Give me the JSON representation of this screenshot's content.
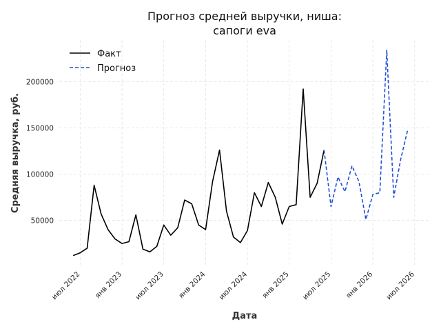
{
  "chart_data": {
    "type": "line",
    "title_lines": [
      "Прогноз средней выручки, ниша:",
      "сапоги eva"
    ],
    "xlabel": "Дата",
    "ylabel": "Средняя выручка, руб.",
    "x_ticks": [
      {
        "date": "2022-07",
        "label": "июл 2022"
      },
      {
        "date": "2023-01",
        "label": "янв 2023"
      },
      {
        "date": "2023-07",
        "label": "июл 2023"
      },
      {
        "date": "2024-01",
        "label": "янв 2024"
      },
      {
        "date": "2024-07",
        "label": "июл 2024"
      },
      {
        "date": "2025-01",
        "label": "янв 2025"
      },
      {
        "date": "2025-07",
        "label": "июл 2025"
      },
      {
        "date": "2026-01",
        "label": "янв 2026"
      },
      {
        "date": "2026-07",
        "label": "июл 2026"
      }
    ],
    "y_ticks": [
      {
        "value": 50000,
        "label": "50000"
      },
      {
        "value": 100000,
        "label": "100000"
      },
      {
        "value": 150000,
        "label": "150000"
      },
      {
        "value": 200000,
        "label": "200000"
      }
    ],
    "xlim": [
      "2022-04",
      "2026-09"
    ],
    "ylim": [
      2000,
      245000
    ],
    "grid": true,
    "legend_position": "top-left",
    "series": [
      {
        "name": "Факт",
        "color": "#000000",
        "style": "solid",
        "points": [
          {
            "x": "2022-06",
            "y": 12000
          },
          {
            "x": "2022-07",
            "y": 15000
          },
          {
            "x": "2022-08",
            "y": 20000
          },
          {
            "x": "2022-09",
            "y": 88000
          },
          {
            "x": "2022-10",
            "y": 57000
          },
          {
            "x": "2022-11",
            "y": 40000
          },
          {
            "x": "2022-12",
            "y": 30000
          },
          {
            "x": "2023-01",
            "y": 25000
          },
          {
            "x": "2023-02",
            "y": 27000
          },
          {
            "x": "2023-03",
            "y": 56000
          },
          {
            "x": "2023-04",
            "y": 19000
          },
          {
            "x": "2023-05",
            "y": 16000
          },
          {
            "x": "2023-06",
            "y": 22000
          },
          {
            "x": "2023-07",
            "y": 45000
          },
          {
            "x": "2023-08",
            "y": 34000
          },
          {
            "x": "2023-09",
            "y": 42000
          },
          {
            "x": "2023-10",
            "y": 72000
          },
          {
            "x": "2023-11",
            "y": 68000
          },
          {
            "x": "2023-12",
            "y": 45000
          },
          {
            "x": "2024-01",
            "y": 40000
          },
          {
            "x": "2024-02",
            "y": 92000
          },
          {
            "x": "2024-03",
            "y": 126000
          },
          {
            "x": "2024-04",
            "y": 60000
          },
          {
            "x": "2024-05",
            "y": 32000
          },
          {
            "x": "2024-06",
            "y": 26000
          },
          {
            "x": "2024-07",
            "y": 39000
          },
          {
            "x": "2024-08",
            "y": 80000
          },
          {
            "x": "2024-09",
            "y": 65000
          },
          {
            "x": "2024-10",
            "y": 91000
          },
          {
            "x": "2024-11",
            "y": 75000
          },
          {
            "x": "2024-12",
            "y": 46000
          },
          {
            "x": "2025-01",
            "y": 65000
          },
          {
            "x": "2025-02",
            "y": 67000
          },
          {
            "x": "2025-03",
            "y": 192000
          },
          {
            "x": "2025-04",
            "y": 75000
          },
          {
            "x": "2025-05",
            "y": 90000
          },
          {
            "x": "2025-06",
            "y": 126000
          }
        ]
      },
      {
        "name": "Прогноз",
        "color": "#1f4fd8",
        "style": "dashed",
        "points": [
          {
            "x": "2025-06",
            "y": 126000
          },
          {
            "x": "2025-07",
            "y": 65000
          },
          {
            "x": "2025-08",
            "y": 97000
          },
          {
            "x": "2025-09",
            "y": 81000
          },
          {
            "x": "2025-10",
            "y": 109000
          },
          {
            "x": "2025-11",
            "y": 92000
          },
          {
            "x": "2025-12",
            "y": 51000
          },
          {
            "x": "2026-01",
            "y": 78000
          },
          {
            "x": "2026-02",
            "y": 80000
          },
          {
            "x": "2026-03",
            "y": 234000
          },
          {
            "x": "2026-04",
            "y": 75000
          },
          {
            "x": "2026-05",
            "y": 116000
          },
          {
            "x": "2026-06",
            "y": 148000
          }
        ]
      }
    ]
  }
}
